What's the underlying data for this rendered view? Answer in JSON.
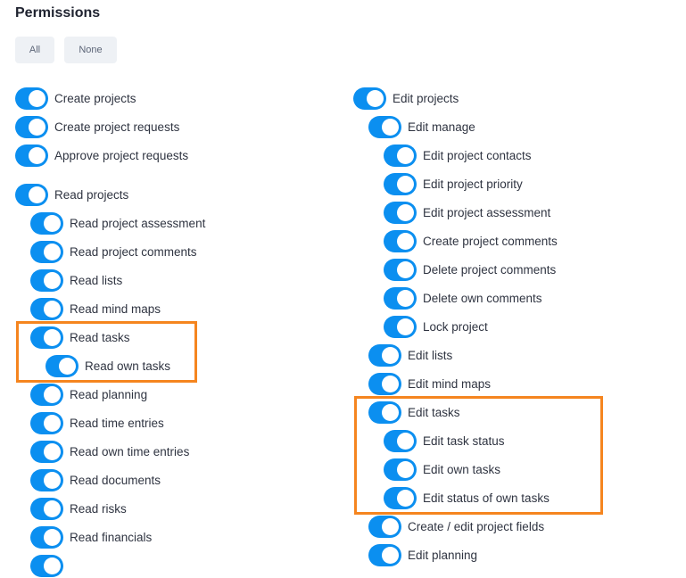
{
  "title": "Permissions",
  "buttons": {
    "all": "All",
    "none": "None"
  },
  "left": [
    {
      "label": "Create projects",
      "on": true
    },
    {
      "label": "Create project requests",
      "on": true
    },
    {
      "label": "Approve project requests",
      "on": true
    },
    {
      "label": "Read projects",
      "on": true
    },
    {
      "label": "Read project assessment",
      "on": true
    },
    {
      "label": "Read project comments",
      "on": true
    },
    {
      "label": "Read lists",
      "on": true
    },
    {
      "label": "Read mind maps",
      "on": true
    },
    {
      "label": "Read tasks",
      "on": true
    },
    {
      "label": "Read own tasks",
      "on": true
    },
    {
      "label": "Read planning",
      "on": true
    },
    {
      "label": "Read time entries",
      "on": true
    },
    {
      "label": "Read own time entries",
      "on": true
    },
    {
      "label": "Read documents",
      "on": true
    },
    {
      "label": "Read risks",
      "on": true
    },
    {
      "label": "Read financials",
      "on": true
    },
    {
      "label": "",
      "on": true
    }
  ],
  "right": [
    {
      "label": "Edit projects",
      "on": true
    },
    {
      "label": "Edit manage",
      "on": true
    },
    {
      "label": "Edit project contacts",
      "on": true
    },
    {
      "label": "Edit project priority",
      "on": true
    },
    {
      "label": "Edit project assessment",
      "on": true
    },
    {
      "label": "Create project comments",
      "on": true
    },
    {
      "label": "Delete project comments",
      "on": true
    },
    {
      "label": "Delete own comments",
      "on": true
    },
    {
      "label": "Lock project",
      "on": true
    },
    {
      "label": "Edit lists",
      "on": true
    },
    {
      "label": "Edit mind maps",
      "on": true
    },
    {
      "label": "Edit tasks",
      "on": true
    },
    {
      "label": "Edit task status",
      "on": true
    },
    {
      "label": "Edit own tasks",
      "on": true
    },
    {
      "label": "Edit status of own tasks",
      "on": true
    },
    {
      "label": "Create / edit project fields",
      "on": true
    },
    {
      "label": "Edit planning",
      "on": true
    }
  ],
  "colors": {
    "toggle_on": "#0b8ff0",
    "highlight": "#f5851f"
  }
}
